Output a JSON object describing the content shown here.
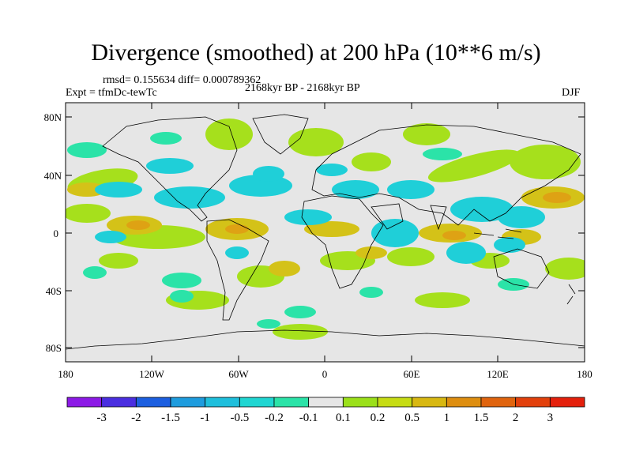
{
  "title": "Divergence (smoothed) at 200 hPa (10**6 m/s)",
  "stats_text": "rmsd= 0.155634 diff= 0.000789362",
  "experiment_text": "Expt = tfmDc-tewTc",
  "period_text": "2168kyr BP - 2168kyr BP",
  "season_text": "DJF",
  "y_axis_labels": [
    "80N",
    "40N",
    "0",
    "40S",
    "80S"
  ],
  "x_axis_labels": [
    "180",
    "120W",
    "60W",
    "0",
    "60E",
    "120E",
    "180"
  ],
  "colorbar": {
    "labels": [
      "-3",
      "-2",
      "-1.5",
      "-1",
      "-0.5",
      "-0.2",
      "-0.1",
      "0.1",
      "0.2",
      "0.5",
      "1",
      "1.5",
      "2",
      "3"
    ],
    "colors": [
      "#8c1ae6",
      "#4a2ee0",
      "#1c5fe0",
      "#1e9cde",
      "#1fbfdc",
      "#20d6d2",
      "#2be3a8",
      "#e6e6e6",
      "#9be01a",
      "#c6dc14",
      "#d8b812",
      "#de8e10",
      "#e0640e",
      "#e2400c",
      "#e4200c"
    ]
  },
  "chart_data": {
    "type": "heatmap",
    "title": "Divergence (smoothed) at 200 hPa (10**6 m/s)",
    "projection": "cylindrical equidistant",
    "xlim": [
      -180,
      180
    ],
    "ylim": [
      -90,
      90
    ],
    "x_ticks": [
      -180,
      -120,
      -60,
      0,
      60,
      120,
      180
    ],
    "y_ticks": [
      80,
      40,
      0,
      -40,
      -80
    ],
    "contour_levels": [
      -3,
      -2,
      -1.5,
      -1,
      -0.5,
      -0.2,
      -0.1,
      0.1,
      0.2,
      0.5,
      1,
      1.5,
      2,
      3
    ],
    "rmsd": 0.155634,
    "diff": 0.000789362,
    "experiment": "tfmDc-tewTc",
    "season": "DJF"
  }
}
